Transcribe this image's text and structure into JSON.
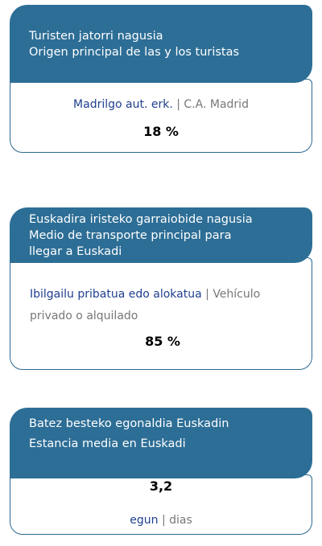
{
  "cards": [
    {
      "header_lines": [
        "Turisten jatorri nagusia",
        "Origen principal de las y los turistas"
      ],
      "label_eu": "Madrilgo aut. erk.",
      "separator": "|",
      "label_es": "C.A. Madrid",
      "value": "18 %"
    },
    {
      "header_lines": [
        "Euskadira iristeko garraiobide nagusia",
        "Medio de transporte principal para",
        "llegar a Euskadi"
      ],
      "label_eu": "Ibilgailu pribatua edo alokatua",
      "separator": "|",
      "label_es": "Vehículo privado o alquilado",
      "value": "85 %"
    },
    {
      "header_lines": [
        "Batez besteko egonaldia Euskadin",
        "Estancia media en Euskadi"
      ],
      "value": "3,2",
      "label_eu": "egun",
      "separator": "|",
      "label_es": "dias"
    }
  ]
}
